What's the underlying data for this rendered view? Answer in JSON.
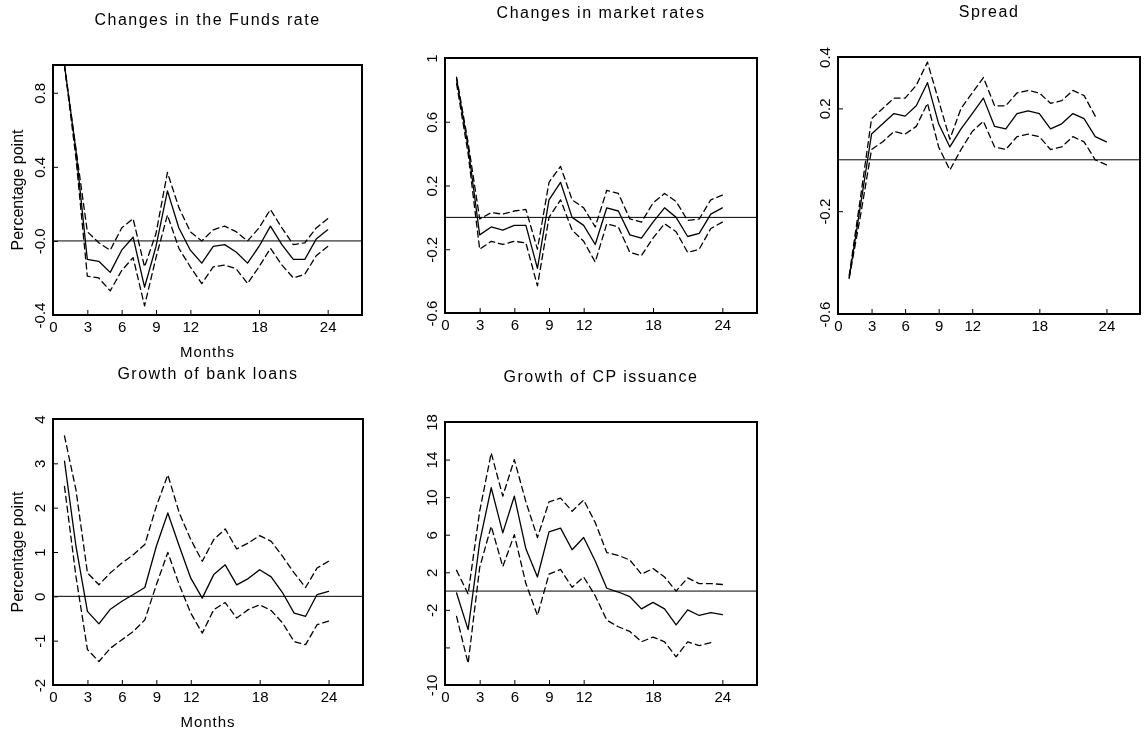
{
  "chart_data": [
    {
      "type": "line",
      "title": "Changes in the Funds rate",
      "xlabel": "Months",
      "ylabel": "Percentage point",
      "x": [
        1,
        2,
        3,
        4,
        5,
        6,
        7,
        8,
        9,
        10,
        11,
        12,
        13,
        14,
        15,
        16,
        17,
        18,
        19,
        20,
        21,
        22,
        23,
        24
      ],
      "xlim": [
        0,
        27
      ],
      "xticks": [
        0,
        3,
        6,
        9,
        12,
        18,
        24
      ],
      "ylim": [
        -0.4,
        0.95
      ],
      "yticks": [
        -0.4,
        {
          "value": 0,
          "label": "-0.0"
        },
        0.4,
        0.8
      ],
      "ref_lines": [
        {
          "axis": "y",
          "value": 0,
          "color": "#000000"
        }
      ],
      "marker": "none",
      "series": [
        {
          "color": "#000000",
          "line_style": "solid",
          "values": [
            0.95,
            0.49,
            -0.1,
            -0.11,
            -0.17,
            -0.05,
            0.02,
            -0.25,
            -0.03,
            0.27,
            0.07,
            -0.05,
            -0.12,
            -0.03,
            -0.02,
            -0.06,
            -0.12,
            -0.03,
            0.08,
            -0.02,
            -0.1,
            -0.1,
            0.01,
            0.06
          ]
        },
        {
          "color": "#000000",
          "line_style": "dashed",
          "values": [
            0.95,
            0.5,
            0.05,
            -0.01,
            -0.05,
            0.07,
            0.12,
            -0.14,
            0.04,
            0.37,
            0.18,
            0.05,
            0.0,
            0.06,
            0.08,
            0.05,
            0.0,
            0.07,
            0.17,
            0.07,
            -0.02,
            -0.01,
            0.07,
            0.12
          ]
        },
        {
          "color": "#000000",
          "line_style": "dashed",
          "values": [
            0.95,
            0.45,
            -0.19,
            -0.2,
            -0.27,
            -0.16,
            -0.09,
            -0.35,
            -0.09,
            0.14,
            -0.04,
            -0.14,
            -0.23,
            -0.14,
            -0.13,
            -0.15,
            -0.23,
            -0.14,
            -0.04,
            -0.13,
            -0.2,
            -0.18,
            -0.08,
            -0.03
          ]
        }
      ]
    },
    {
      "type": "line",
      "title": "Changes in market rates",
      "x": [
        1,
        2,
        3,
        4,
        5,
        6,
        7,
        8,
        9,
        10,
        11,
        12,
        13,
        14,
        15,
        16,
        17,
        18,
        19,
        20,
        21,
        22,
        23,
        24
      ],
      "xlim": [
        0,
        27
      ],
      "xticks": [
        0,
        3,
        6,
        9,
        12,
        18,
        24
      ],
      "ylim": [
        -0.6,
        1.0
      ],
      "yticks": [
        -0.6,
        -0.2,
        0.2,
        0.6,
        1.0
      ],
      "ref_lines": [
        {
          "axis": "y",
          "value": 0,
          "color": "#000000"
        }
      ],
      "marker": "none",
      "series": [
        {
          "color": "#000000",
          "line_style": "solid",
          "values": [
            0.87,
            0.44,
            -0.11,
            -0.06,
            -0.08,
            -0.05,
            -0.05,
            -0.32,
            0.11,
            0.22,
            0.0,
            -0.05,
            -0.17,
            0.06,
            0.04,
            -0.11,
            -0.13,
            -0.03,
            0.06,
            0.0,
            -0.12,
            -0.1,
            0.02,
            0.06
          ]
        },
        {
          "color": "#000000",
          "line_style": "dashed",
          "values": [
            0.88,
            0.47,
            -0.01,
            0.03,
            0.02,
            0.04,
            0.05,
            -0.2,
            0.22,
            0.32,
            0.11,
            0.06,
            -0.06,
            0.17,
            0.15,
            -0.01,
            -0.03,
            0.09,
            0.15,
            0.1,
            -0.02,
            -0.01,
            0.11,
            0.14
          ]
        },
        {
          "color": "#000000",
          "line_style": "dashed",
          "values": [
            0.84,
            0.4,
            -0.2,
            -0.15,
            -0.17,
            -0.15,
            -0.16,
            -0.43,
            0.0,
            0.11,
            -0.08,
            -0.15,
            -0.28,
            -0.04,
            -0.06,
            -0.22,
            -0.24,
            -0.13,
            -0.04,
            -0.09,
            -0.22,
            -0.2,
            -0.07,
            -0.03
          ]
        }
      ]
    },
    {
      "type": "line",
      "title": "Spread",
      "x": [
        1,
        2,
        3,
        4,
        5,
        6,
        7,
        8,
        9,
        10,
        11,
        12,
        13,
        14,
        15,
        16,
        17,
        18,
        19,
        20,
        21,
        22,
        23,
        24
      ],
      "xlim": [
        0,
        27
      ],
      "xticks": [
        0,
        3,
        6,
        9,
        12,
        18,
        24
      ],
      "ylim": [
        -0.6,
        0.4
      ],
      "yticks": [
        -0.6,
        -0.2,
        0.2,
        0.4
      ],
      "ref_lines": [
        {
          "axis": "y",
          "value": 0,
          "color": "#000000"
        }
      ],
      "marker": "none",
      "series": [
        {
          "color": "#000000",
          "line_style": "solid",
          "values": [
            -0.46,
            -0.18,
            0.1,
            0.14,
            0.18,
            0.17,
            0.21,
            0.3,
            0.14,
            0.05,
            0.12,
            0.18,
            0.24,
            0.13,
            0.12,
            0.18,
            0.19,
            0.18,
            0.12,
            0.14,
            0.18,
            0.16,
            0.09,
            0.07
          ]
        },
        {
          "color": "#000000",
          "line_style": "dashed",
          "values": [
            -0.45,
            -0.15,
            0.16,
            0.2,
            0.24,
            0.24,
            0.29,
            0.38,
            0.23,
            0.08,
            0.2,
            0.26,
            0.32,
            0.21,
            0.21,
            0.26,
            0.27,
            0.26,
            0.22,
            0.23,
            0.27,
            0.25,
            0.17,
            null
          ]
        },
        {
          "color": "#000000",
          "line_style": "dashed",
          "values": [
            -0.46,
            -0.22,
            0.04,
            0.07,
            0.11,
            0.1,
            0.13,
            0.22,
            0.05,
            -0.04,
            0.04,
            0.11,
            0.15,
            0.05,
            0.04,
            0.09,
            0.1,
            0.09,
            0.04,
            0.05,
            0.09,
            0.07,
            0.0,
            -0.02
          ]
        }
      ]
    },
    {
      "type": "line",
      "title": "Growth of bank loans",
      "xlabel": "Months",
      "ylabel": "Percentage point",
      "x": [
        1,
        2,
        3,
        4,
        5,
        6,
        7,
        8,
        9,
        10,
        11,
        12,
        13,
        14,
        15,
        16,
        17,
        18,
        19,
        20,
        21,
        22,
        23,
        24
      ],
      "xlim": [
        0,
        27
      ],
      "xticks": [
        0,
        3,
        6,
        9,
        12,
        18,
        24
      ],
      "ylim": [
        -2,
        4
      ],
      "yticks": [
        -2,
        -1,
        0,
        1,
        2,
        3,
        4
      ],
      "ref_lines": [
        {
          "axis": "y",
          "value": 0,
          "color": "#000000"
        }
      ],
      "marker": "none",
      "series": [
        {
          "color": "#000000",
          "line_style": "solid",
          "values": [
            3.05,
            1.13,
            -0.34,
            -0.62,
            -0.29,
            -0.11,
            0.04,
            0.2,
            1.13,
            1.88,
            1.13,
            0.41,
            -0.04,
            0.49,
            0.71,
            0.26,
            0.4,
            0.6,
            0.44,
            0.08,
            -0.38,
            -0.45,
            0.04,
            0.11
          ]
        },
        {
          "color": "#000000",
          "line_style": "dashed",
          "values": [
            3.62,
            2.4,
            0.53,
            0.26,
            0.53,
            0.75,
            0.94,
            1.17,
            2.03,
            2.74,
            1.88,
            1.28,
            0.79,
            1.28,
            1.52,
            1.07,
            1.2,
            1.37,
            1.24,
            0.9,
            0.53,
            0.2,
            0.64,
            0.79
          ]
        },
        {
          "color": "#000000",
          "line_style": "dashed",
          "values": [
            2.48,
            0.45,
            -1.2,
            -1.47,
            -1.17,
            -0.98,
            -0.79,
            -0.53,
            0.26,
            0.99,
            0.26,
            -0.38,
            -0.83,
            -0.3,
            -0.14,
            -0.49,
            -0.3,
            -0.19,
            -0.32,
            -0.6,
            -1.02,
            -1.09,
            -0.64,
            -0.56
          ]
        }
      ]
    },
    {
      "type": "line",
      "title": "Growth of CP issuance",
      "x": [
        1,
        2,
        3,
        4,
        5,
        6,
        7,
        8,
        9,
        10,
        11,
        12,
        13,
        14,
        15,
        16,
        17,
        18,
        19,
        20,
        21,
        22,
        23,
        24
      ],
      "xlim": [
        0,
        27
      ],
      "xticks": [
        0,
        3,
        6,
        9,
        12,
        18,
        24
      ],
      "ylim": [
        -10,
        18
      ],
      "yticks": [
        -10,
        {
          "value": -6,
          "label": null
        },
        -2,
        2,
        6,
        10,
        14,
        18
      ],
      "ref_lines": [
        {
          "axis": "y",
          "value": 0,
          "color": "#000000"
        }
      ],
      "marker": "none",
      "series": [
        {
          "color": "#000000",
          "line_style": "solid",
          "values": [
            -0.2,
            -4.1,
            5.2,
            11.0,
            6.2,
            10.1,
            4.5,
            1.5,
            6.3,
            6.7,
            4.4,
            5.7,
            3.2,
            0.3,
            -0.1,
            -0.6,
            -1.9,
            -1.2,
            -1.9,
            -3.6,
            -2.0,
            -2.6,
            -2.3,
            -2.5
          ]
        },
        {
          "color": "#000000",
          "line_style": "dashed",
          "values": [
            2.2,
            -0.3,
            8.5,
            14.7,
            10.1,
            14.0,
            9.5,
            5.7,
            9.5,
            9.9,
            8.5,
            9.7,
            7.3,
            4.1,
            3.8,
            3.3,
            1.8,
            2.4,
            1.5,
            0.0,
            1.4,
            0.8,
            0.8,
            0.7
          ]
        },
        {
          "color": "#000000",
          "line_style": "dashed",
          "values": [
            -2.7,
            -7.7,
            2.5,
            6.9,
            2.6,
            6.0,
            0.8,
            -2.6,
            1.8,
            2.3,
            0.4,
            1.5,
            -0.5,
            -3.1,
            -3.8,
            -4.3,
            -5.4,
            -4.9,
            -5.4,
            -7.0,
            -5.4,
            -5.8,
            -5.5,
            null
          ]
        }
      ]
    }
  ]
}
